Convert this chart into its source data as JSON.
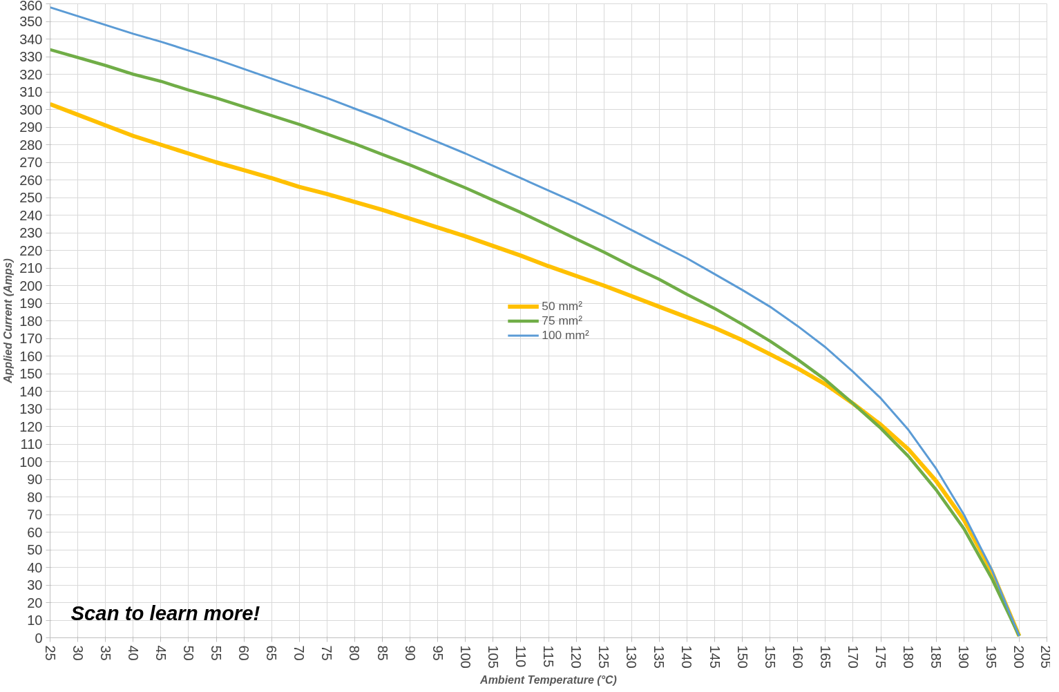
{
  "chart_data": {
    "type": "line",
    "xlabel": "Ambient Temperature (°C)",
    "ylabel": "Applied Current (Amps)",
    "x": [
      25,
      30,
      35,
      40,
      45,
      50,
      55,
      60,
      65,
      70,
      75,
      80,
      85,
      90,
      95,
      100,
      105,
      110,
      115,
      120,
      125,
      130,
      135,
      140,
      145,
      150,
      155,
      160,
      165,
      170,
      175,
      180,
      185,
      190,
      195,
      200
    ],
    "series": [
      {
        "name": "50 mm²",
        "color": "#ffc000",
        "values": [
          303,
          297,
          291,
          285,
          280,
          275,
          270,
          265.5,
          261,
          256,
          252,
          247.5,
          243,
          238,
          233,
          228,
          222.5,
          217,
          211,
          205.5,
          200,
          194,
          188,
          182,
          176,
          169,
          161,
          153,
          144,
          133,
          121,
          107,
          89,
          67,
          38,
          1
        ]
      },
      {
        "name": "75 mm²",
        "color": "#70ad47",
        "values": [
          334,
          329.5,
          325,
          320,
          316,
          311,
          306.5,
          301.5,
          296.5,
          291.5,
          286,
          280.5,
          274.5,
          268.5,
          262,
          255.5,
          248.5,
          241.5,
          234,
          226.5,
          219,
          211,
          203.5,
          195,
          187,
          178,
          168.5,
          158,
          146.5,
          133,
          119,
          103,
          84,
          62,
          34,
          1
        ]
      },
      {
        "name": "100 mm²",
        "color": "#5b9bd5",
        "values": [
          358,
          353,
          348,
          343,
          338.5,
          333.5,
          328.5,
          323,
          317.5,
          312,
          306.5,
          300.5,
          294.5,
          288,
          281.5,
          275,
          268,
          261,
          254,
          247,
          239.5,
          231.5,
          223.5,
          215.5,
          206.5,
          197.5,
          188,
          177,
          165,
          151,
          136,
          118,
          96,
          70,
          39,
          1
        ]
      }
    ],
    "xlim": [
      25,
      205
    ],
    "xticks": [
      25,
      30,
      35,
      40,
      45,
      50,
      55,
      60,
      65,
      70,
      75,
      80,
      85,
      90,
      95,
      100,
      105,
      110,
      115,
      120,
      125,
      130,
      135,
      140,
      145,
      150,
      155,
      160,
      165,
      170,
      175,
      180,
      185,
      190,
      195,
      200,
      205
    ],
    "ylim": [
      0,
      360
    ],
    "yticks": [
      0,
      10,
      20,
      30,
      40,
      50,
      60,
      70,
      80,
      90,
      100,
      110,
      120,
      130,
      140,
      150,
      160,
      170,
      180,
      190,
      200,
      210,
      220,
      230,
      240,
      250,
      260,
      270,
      280,
      290,
      300,
      310,
      320,
      330,
      340,
      350,
      360
    ],
    "grid": true,
    "legend": "center",
    "marker": "none",
    "line_style": "solid",
    "annotations": [
      "Scan to learn more!"
    ]
  }
}
